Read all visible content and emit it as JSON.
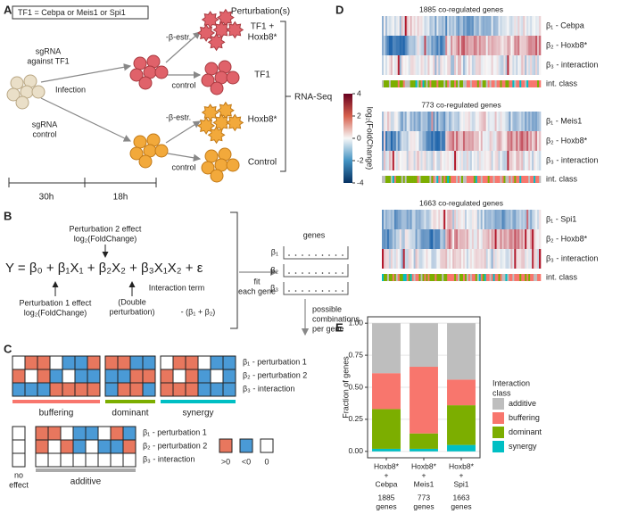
{
  "panel_labels": [
    "A",
    "B",
    "C",
    "D",
    "E"
  ],
  "panel_a": {
    "tf_box": "TF1 = Cebpa or Meis1 or Spi1",
    "header": "Perturbation(s)",
    "sgrna_tf": [
      "sgRNA",
      "against TF1"
    ],
    "infection": "Infection",
    "sgrna_control": [
      "sgRNA",
      "control"
    ],
    "treatments": [
      "-β-estr.",
      "control",
      "-β-estr.",
      "control"
    ],
    "perturbations": [
      [
        "TF1 +",
        "Hoxb8*"
      ],
      [
        "TF1"
      ],
      [
        "Hoxb8*"
      ],
      [
        "Control"
      ]
    ],
    "readout": "RNA-Seq",
    "times": [
      "30h",
      "18h"
    ]
  },
  "panel_b": {
    "formula": "Y = β₀ + β₁X₁ + β₂X₂ + β₃X₁X₂ + ε",
    "perturbation2": [
      "Perturbation 2 effect",
      "log₂(FoldChange)"
    ],
    "perturbation1": [
      "Perturbation 1 effect",
      "log₂(FoldChange)"
    ],
    "interaction": [
      "Interaction term",
      "(Double",
      "perturbation)",
      "- (β₁ + β₂)"
    ],
    "fit": [
      "fit",
      "each gene"
    ],
    "genes": "genes",
    "coefficients": [
      "β₁",
      "β₂",
      "β₃"
    ],
    "combinations": [
      "possible",
      "combinations",
      "per gene"
    ]
  },
  "panel_c": {
    "row_labels": [
      "β₁ - perturbation 1",
      "β₂ - perturbation 2",
      "β₃ - interaction"
    ],
    "classes": [
      "buffering",
      "dominant",
      "synergy"
    ],
    "no_effect": [
      "no",
      "effect"
    ],
    "additive": "additive",
    "legend": [
      ">0",
      "<0",
      "0"
    ]
  },
  "panel_d": {
    "colorbar": {
      "label": "log₂(FoldChange)",
      "lim": [
        -4,
        4
      ],
      "ticks": [
        4,
        2,
        0,
        -2,
        -4
      ]
    },
    "blocks": [
      {
        "title": "1885 co-regulated genes",
        "rows": [
          "β₁ - Cebpa",
          "β₂ - Hoxb8*",
          "β₃ - interaction",
          "int. class"
        ]
      },
      {
        "title": "773 co-regulated genes",
        "rows": [
          "β₁ - Meis1",
          "β₂ - Hoxb8*",
          "β₃ - interaction",
          "int. class"
        ]
      },
      {
        "title": "1663 co-regulated genes",
        "rows": [
          "β₁ - Spi1",
          "β₂ - Hoxb8*",
          "β₃ - interaction",
          "int. class"
        ]
      }
    ]
  },
  "chart_data": {
    "type": "bar",
    "stacked": true,
    "ylabel": "Fraction of genes",
    "categories": [
      [
        "Hoxb8*",
        "+",
        "Cebpa"
      ],
      [
        "Hoxb8*",
        "+",
        "Meis1"
      ],
      [
        "Hoxb8*",
        "+",
        "Spi1"
      ]
    ],
    "gene_counts": [
      [
        "1885",
        "genes"
      ],
      [
        "773",
        "genes"
      ],
      [
        "1663",
        "genes"
      ]
    ],
    "legend_title": [
      "Interaction",
      "class"
    ],
    "legend": "right",
    "series": [
      {
        "name": "additive",
        "color": "#bebebe",
        "values": [
          0.39,
          0.34,
          0.44
        ]
      },
      {
        "name": "buffering",
        "color": "#f8766d",
        "values": [
          0.28,
          0.52,
          0.2
        ]
      },
      {
        "name": "dominant",
        "color": "#7cae00",
        "values": [
          0.31,
          0.12,
          0.31
        ]
      },
      {
        "name": "synergy",
        "color": "#00bfc4",
        "values": [
          0.02,
          0.02,
          0.05
        ]
      }
    ],
    "ylim": [
      -0.05,
      1.05
    ],
    "yticks": [
      {
        "value": 0,
        "label": "0.00"
      },
      {
        "value": 0.25,
        "label": "0.25"
      },
      {
        "value": 0.5,
        "label": "0.50"
      },
      {
        "value": 0.75,
        "label": "0.75"
      },
      {
        "value": 1,
        "label": "1.00"
      }
    ],
    "grid": true
  }
}
